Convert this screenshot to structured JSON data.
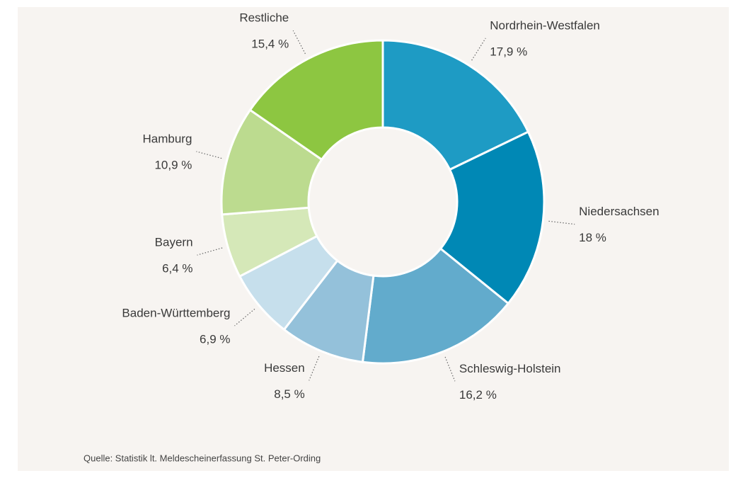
{
  "chart_data": {
    "type": "donut",
    "categories": [
      "Nordrhein-Westfalen",
      "Niedersachsen",
      "Schleswig-Holstein",
      "Hessen",
      "Baden-Württemberg",
      "Bayern",
      "Hamburg",
      "Restliche"
    ],
    "values": [
      17.9,
      18,
      16.2,
      8.5,
      6.9,
      6.4,
      10.9,
      15.4
    ],
    "value_labels": [
      "17,9 %",
      "18 %",
      "16,2 %",
      "8,5 %",
      "6,9 %",
      "6,4 %",
      "10,9 %",
      "15,4 %"
    ],
    "colors": [
      "#1e9bc4",
      "#0088b5",
      "#62abcc",
      "#94c1da",
      "#c6dfec",
      "#d5e8b8",
      "#bcdb8f",
      "#8dc641"
    ],
    "source": "Quelle: Statistik lt. Meldescheinerfassung St. Peter-Ording"
  }
}
